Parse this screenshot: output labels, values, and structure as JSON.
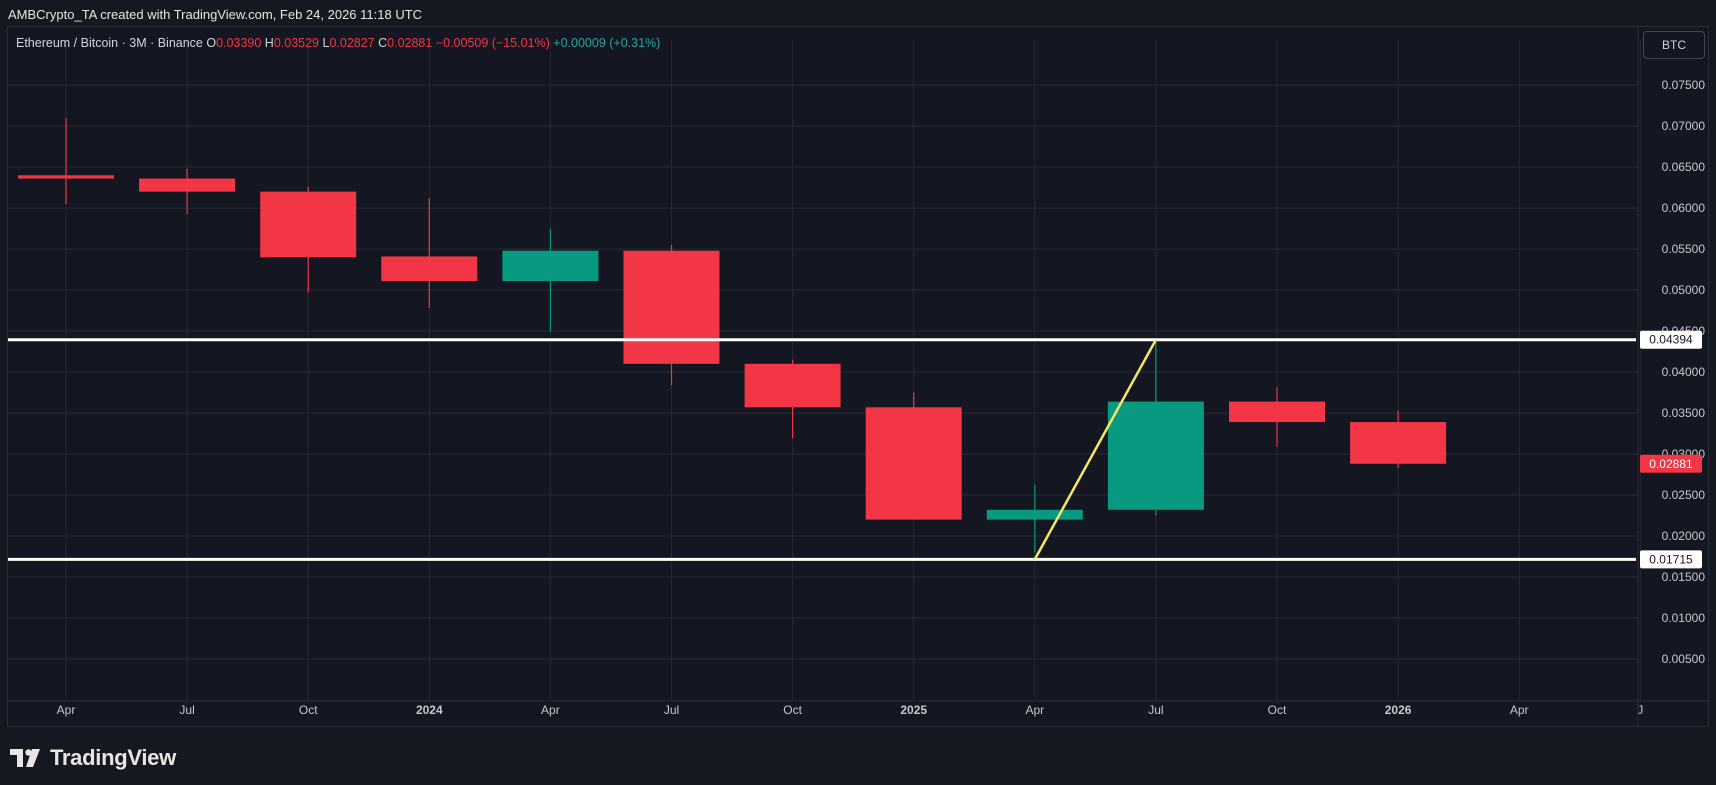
{
  "caption": "AMBCrypto_TA created with TradingView.com, Feb 24, 2026 11:18 UTC",
  "legend": {
    "symbol": "Ethereum / Bitcoin · 3M · Binance",
    "o_label": "O",
    "o": "0.03390",
    "h_label": "H",
    "h": "0.03529",
    "l_label": "L",
    "l": "0.02827",
    "c_label": "C",
    "c": "0.02881",
    "change": "−0.00509 (−15.01%)",
    "extra": "+0.00009 (+0.31%)"
  },
  "currency_label": "BTC",
  "brand": "TradingView",
  "colors": {
    "up": "#089981",
    "down": "#f23645",
    "background": "#141721",
    "grid": "#252a36",
    "level_line": "#ffffff",
    "trend_line": "#f5e663"
  },
  "chart_data": {
    "type": "candlestick",
    "interval": "3M",
    "ylim": [
      0.0,
      0.0805
    ],
    "y_ticks": [
      "0.00500",
      "0.01000",
      "0.01500",
      "0.02000",
      "0.02500",
      "0.03000",
      "0.03500",
      "0.04000",
      "0.04500",
      "0.05000",
      "0.05500",
      "0.06000",
      "0.06500",
      "0.07000",
      "0.07500"
    ],
    "x_ticks": [
      "Apr",
      "Jul",
      "Oct",
      "2024",
      "Apr",
      "Jul",
      "Oct",
      "2025",
      "Apr",
      "Jul",
      "Oct",
      "2026",
      "Apr",
      "J"
    ],
    "x_ticks_bold": [
      "2024",
      "2025",
      "2026"
    ],
    "candles": [
      {
        "period": "2023-Q2",
        "open": 0.064,
        "high": 0.071,
        "low": 0.0605,
        "close": 0.0636
      },
      {
        "period": "2023-Q3",
        "open": 0.0636,
        "high": 0.0648,
        "low": 0.0593,
        "close": 0.062
      },
      {
        "period": "2023-Q4",
        "open": 0.062,
        "high": 0.0626,
        "low": 0.0497,
        "close": 0.054
      },
      {
        "period": "2024-Q1",
        "open": 0.0541,
        "high": 0.0612,
        "low": 0.0478,
        "close": 0.0511
      },
      {
        "period": "2024-Q2",
        "open": 0.0511,
        "high": 0.0575,
        "low": 0.0449,
        "close": 0.0548
      },
      {
        "period": "2024-Q3",
        "open": 0.0548,
        "high": 0.0555,
        "low": 0.0384,
        "close": 0.041
      },
      {
        "period": "2024-Q4",
        "open": 0.041,
        "high": 0.0415,
        "low": 0.0319,
        "close": 0.0357
      },
      {
        "period": "2025-Q1",
        "open": 0.0357,
        "high": 0.0375,
        "low": 0.022,
        "close": 0.022
      },
      {
        "period": "2025-Q2",
        "open": 0.022,
        "high": 0.0263,
        "low": 0.018,
        "close": 0.0232
      },
      {
        "period": "2025-Q3",
        "open": 0.0232,
        "high": 0.0439,
        "low": 0.0225,
        "close": 0.0364
      },
      {
        "period": "2025-Q4",
        "open": 0.0364,
        "high": 0.0381,
        "low": 0.0309,
        "close": 0.0339
      },
      {
        "period": "2026-Q1",
        "open": 0.0339,
        "high": 0.03529,
        "low": 0.02827,
        "close": 0.02881
      }
    ],
    "horizontal_levels": [
      {
        "value": 0.04394,
        "label": "0.04394"
      },
      {
        "value": 0.01715,
        "label": "0.01715"
      }
    ],
    "current_price": {
      "value": 0.02881,
      "label": "0.02881"
    },
    "trend_line": {
      "from": {
        "period": "2025-Q2",
        "price": 0.01715
      },
      "to": {
        "period": "2025-Q3",
        "price": 0.04394
      }
    }
  }
}
